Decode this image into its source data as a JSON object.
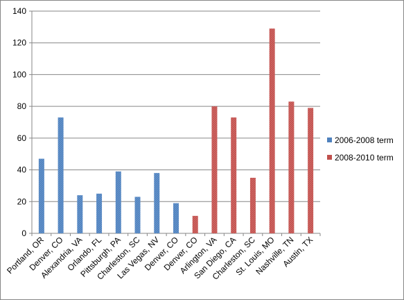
{
  "chart_data": {
    "type": "bar",
    "title": "",
    "xlabel": "",
    "ylabel": "",
    "ylim": [
      0,
      140
    ],
    "yticks": [
      0,
      20,
      40,
      60,
      80,
      100,
      120,
      140
    ],
    "grid": true,
    "legend_position": "right",
    "categories": [
      "Portland, OR",
      "Denver, CO",
      "Alexandria, VA",
      "Orlando, FL",
      "Pittsburgh, PA",
      "Charleston, SC",
      "Las Vegas, NV",
      "Denver, CO",
      "Denver, CO",
      "Arlington, VA",
      "San Diego, CA",
      "Charleston, SC",
      "St. Louis, MO",
      "Nashville, TN",
      "Austin, TX"
    ],
    "series": [
      {
        "name": "2006-2008 term",
        "color": "#4F81BD",
        "values": [
          47,
          73,
          24,
          25,
          39,
          23,
          38,
          19,
          null,
          null,
          null,
          null,
          null,
          null,
          null
        ]
      },
      {
        "name": "2008-2010 term",
        "color": "#C0504D",
        "values": [
          null,
          null,
          null,
          null,
          null,
          null,
          null,
          null,
          11,
          80,
          73,
          35,
          129,
          83,
          79
        ]
      }
    ]
  }
}
